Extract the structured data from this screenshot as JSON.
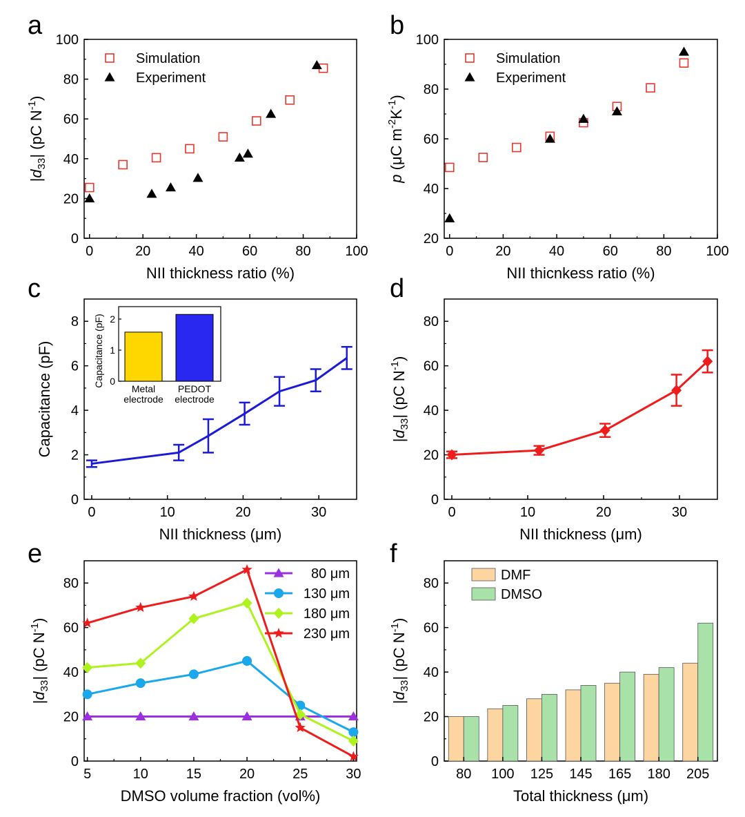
{
  "panels": [
    {
      "letter": "a",
      "chart_data": {
        "type": "scatter",
        "xlabel": "NII thickness ratio (%)",
        "ylabel_parts": [
          "|",
          "d",
          "33",
          "| (pC N",
          "-1",
          ")"
        ],
        "xlim": [
          -2,
          100
        ],
        "ylim": [
          0,
          100
        ],
        "xticks": [
          0,
          20,
          40,
          60,
          80,
          100
        ],
        "yticks": [
          0,
          20,
          40,
          60,
          80,
          100
        ],
        "series": [
          {
            "name": "Simulation",
            "marker": "open-square",
            "color": "#e8372c",
            "x": [
              0,
              12.5,
              25,
              37.5,
              50,
              62.5,
              75,
              87.5
            ],
            "y": [
              25.5,
              37,
              40.5,
              45,
              51,
              59,
              69.5,
              85.5
            ]
          },
          {
            "name": "Experiment",
            "marker": "filled-triangle",
            "color": "#000000",
            "x": [
              0,
              23.3,
              30.4,
              40.6,
              56.2,
              59.3,
              67.9,
              85.1
            ],
            "y": [
              20,
              22.3,
              25.5,
              30.3,
              40.5,
              42.5,
              62.5,
              87
            ]
          }
        ]
      }
    },
    {
      "letter": "b",
      "chart_data": {
        "type": "scatter",
        "xlabel": "NII thicnkess ratio (%)",
        "ylabel_parts": [
          "p",
          " (μC m",
          "-2",
          "K",
          "-1",
          ")"
        ],
        "xlim": [
          -2,
          100
        ],
        "ylim": [
          20,
          100
        ],
        "xticks": [
          0,
          20,
          40,
          60,
          80,
          100
        ],
        "yticks": [
          20,
          40,
          60,
          80,
          100
        ],
        "series": [
          {
            "name": "Simulation",
            "marker": "open-square",
            "color": "#e8372c",
            "x": [
              0,
              12.5,
              25,
              37.5,
              50,
              62.5,
              75,
              87.5
            ],
            "y": [
              48.5,
              52.5,
              56.5,
              61,
              66.5,
              73,
              80.5,
              90.5
            ]
          },
          {
            "name": "Experiment",
            "marker": "filled-triangle",
            "color": "#000000",
            "x": [
              0,
              37.5,
              50,
              62.5,
              87.5
            ],
            "y": [
              28,
              60,
              68,
              71,
              95
            ]
          }
        ]
      }
    },
    {
      "letter": "c",
      "chart_data": {
        "type": "line",
        "xlabel": "NII thickness (μm)",
        "ylabel_parts": [
          "Capacitance (pF)"
        ],
        "xlim": [
          -1,
          35
        ],
        "ylim": [
          0,
          9
        ],
        "xticks": [
          0,
          10,
          20,
          30
        ],
        "yticks": [
          0,
          2,
          4,
          6,
          8
        ],
        "series": [
          {
            "name": "Capacitance",
            "marker": "none",
            "color": "#1b1bd6",
            "x": [
              0,
              11.5,
              15.4,
              20.2,
              24.8,
              29.6,
              33.7
            ],
            "y": [
              1.6,
              2.1,
              2.85,
              3.85,
              4.85,
              5.35,
              6.35
            ],
            "err": [
              0.15,
              0.35,
              0.75,
              0.5,
              0.65,
              0.5,
              0.5
            ]
          }
        ],
        "inset": {
          "ylabel": "Capacitance (pF)",
          "ylim": [
            0,
            2.4
          ],
          "yticks": [
            0,
            1,
            2
          ],
          "bars": [
            {
              "label_line1": "Metal",
              "label_line2": "electrode",
              "value": 1.58,
              "color": "#ffd700"
            },
            {
              "label_line1": "PEDOT",
              "label_line2": "electrode",
              "value": 2.15,
              "color": "#2828f0"
            }
          ]
        }
      }
    },
    {
      "letter": "d",
      "chart_data": {
        "type": "line",
        "xlabel": "NII thickness (μm)",
        "ylabel_parts": [
          "|",
          "d",
          "33",
          "| (pC N",
          "-1",
          ")"
        ],
        "xlim": [
          -1,
          35
        ],
        "ylim": [
          0,
          90
        ],
        "xticks": [
          0,
          10,
          20,
          30
        ],
        "yticks": [
          0,
          20,
          40,
          60,
          80
        ],
        "series": [
          {
            "name": "d33",
            "marker": "filled-diamond",
            "color": "#ee1c1c",
            "x": [
              0,
              11.5,
              20.2,
              29.6,
              33.7
            ],
            "y": [
              20,
              22,
              31,
              49,
              62
            ],
            "err": [
              1.5,
              2.0,
              3.0,
              7.0,
              5.0
            ]
          }
        ]
      }
    },
    {
      "letter": "e",
      "chart_data": {
        "type": "line",
        "xlabel": "DMSO volume fraction (vol%)",
        "ylabel_parts": [
          "|",
          "d",
          "33",
          "| (pC N",
          "-1",
          ")"
        ],
        "xlim": [
          4.7,
          30.3
        ],
        "ylim": [
          0,
          90
        ],
        "xticks": [
          5,
          10,
          15,
          20,
          25,
          30
        ],
        "yticks": [
          0,
          20,
          40,
          60,
          80
        ],
        "series": [
          {
            "name": "80 μm",
            "marker": "filled-triangle",
            "color": "#9b30e0",
            "x": [
              5,
              10,
              15,
              20,
              25,
              30
            ],
            "y": [
              20,
              20,
              20,
              20,
              20,
              20
            ]
          },
          {
            "name": "130 μm",
            "marker": "filled-circle",
            "color": "#1aa7ec",
            "x": [
              5,
              10,
              15,
              20,
              25,
              30
            ],
            "y": [
              30,
              35,
              39,
              45,
              25,
              13
            ]
          },
          {
            "name": "180 μm",
            "marker": "filled-diamond",
            "color": "#aef21e",
            "x": [
              5,
              10,
              15,
              20,
              25,
              30
            ],
            "y": [
              42,
              44,
              64,
              71,
              21,
              9
            ]
          },
          {
            "name": "230 μm",
            "marker": "filled-star",
            "color": "#ee1c1c",
            "x": [
              5,
              10,
              15,
              20,
              25,
              30
            ],
            "y": [
              62,
              69,
              74,
              86,
              15,
              2
            ]
          }
        ]
      }
    },
    {
      "letter": "f",
      "chart_data": {
        "type": "bar",
        "xlabel": "Total thickness (μm)",
        "ylabel_parts": [
          "|",
          "d",
          "33",
          "| (pC N",
          "-1",
          ")"
        ],
        "categories": [
          "80",
          "100",
          "125",
          "145",
          "165",
          "180",
          "205"
        ],
        "ylim": [
          0,
          90
        ],
        "yticks": [
          0,
          20,
          40,
          60,
          80
        ],
        "series": [
          {
            "name": "DMF",
            "color": "#fcd5a0",
            "values": [
              20,
              23.5,
              28,
              32,
              35,
              39,
              44
            ]
          },
          {
            "name": "DMSO",
            "color": "#a8e2a8",
            "values": [
              20,
              25,
              30,
              34,
              40,
              42,
              62
            ]
          }
        ]
      }
    }
  ]
}
